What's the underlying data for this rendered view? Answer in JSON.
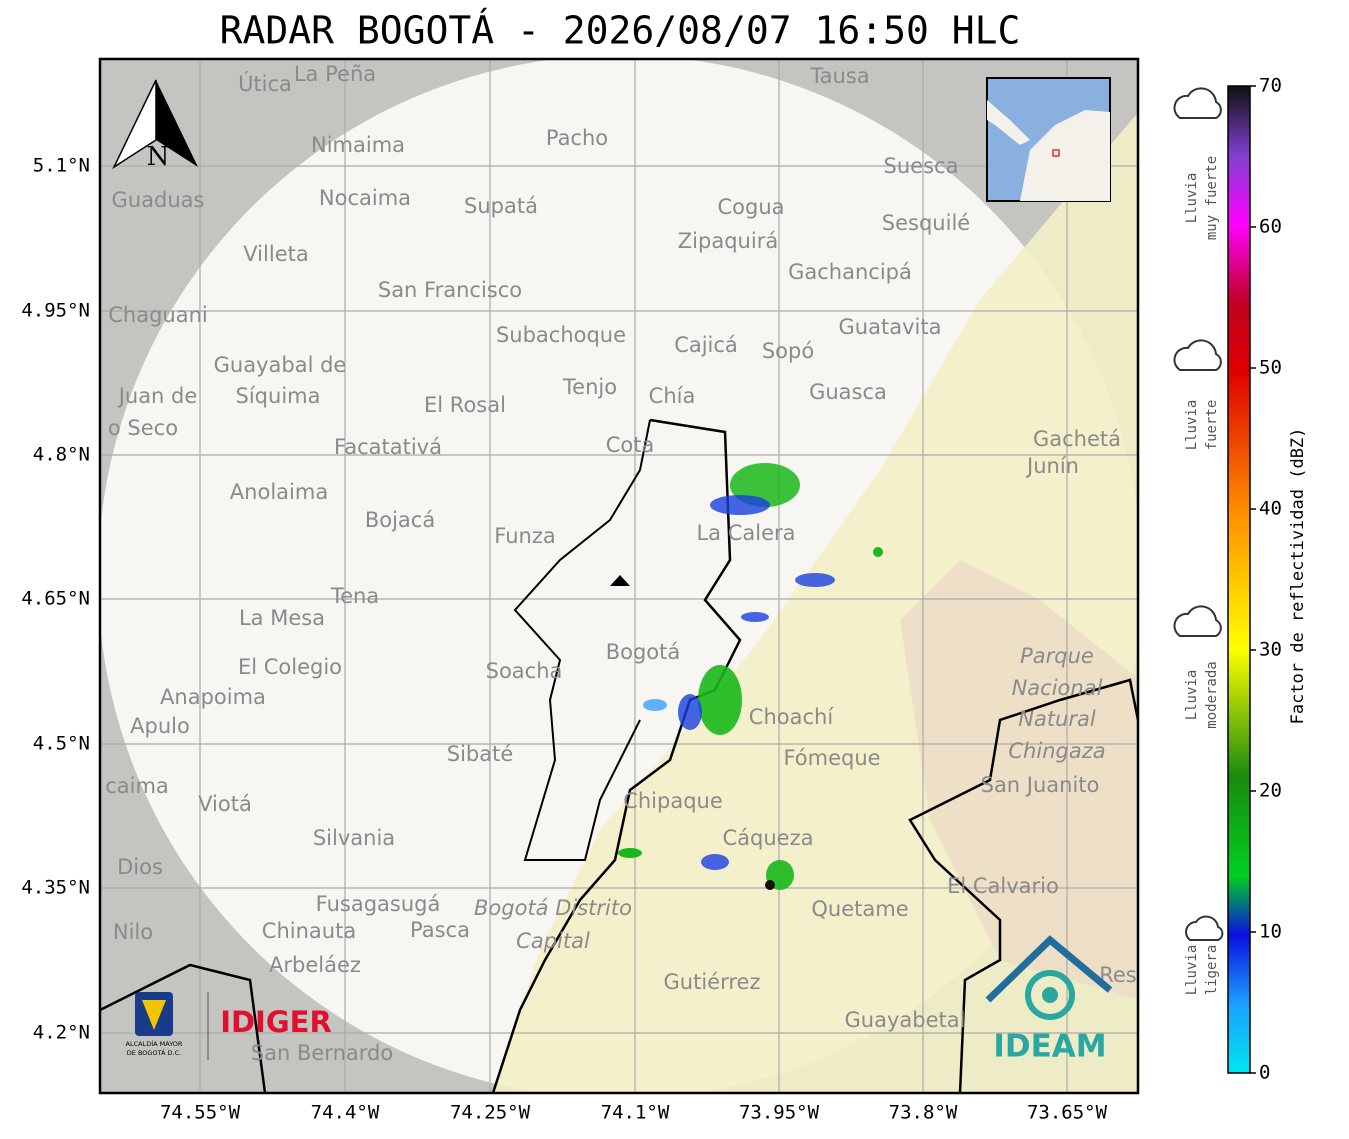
{
  "header": {
    "title": "RADAR BOGOTÁ - 2026/08/07 16:50 HLC"
  },
  "map": {
    "north": "N",
    "lat_labels": [
      "5.1°N",
      "4.95°N",
      "4.8°N",
      "4.65°N",
      "4.5°N",
      "4.35°N",
      "4.2°N"
    ],
    "lon_labels": [
      "74.55°W",
      "74.4°W",
      "74.25°W",
      "74.1°W",
      "73.95°W",
      "73.8°W",
      "73.65°W"
    ],
    "places": [
      "Útica",
      "La Peña",
      "Tausa",
      "Pacho",
      "Nimaima",
      "Guaduas",
      "Nocaima",
      "Supatá",
      "Cogua",
      "Suesca",
      "Sesquilé",
      "Villeta",
      "Zipaquirá",
      "Gachancipá",
      "San Francisco",
      "Chaguani",
      "Guatavita",
      "Subachoque",
      "Cajicá",
      "Sopó",
      "Guayabal de",
      "Síquima",
      "Juan de",
      "Tenjo",
      "Chía",
      "Guasca",
      "El Rosal",
      "o Seco",
      "Cota",
      "Facatativá",
      "Gachetá",
      "Junín",
      "Anolaima",
      "Bojacá",
      "Funza",
      "La Calera",
      "Tena",
      "La Mesa",
      "Parque",
      "Bogotá",
      "El Colegio",
      "Soacha",
      "Nacional",
      "Anapoima",
      "Apulo",
      "Choachí",
      "Natural",
      "Chingaza",
      "Sibaté",
      "Fómeque",
      "San Juanito",
      "caima",
      "Viotá",
      "Chipaque",
      "Silvania",
      "Cáqueza",
      "Dios",
      "El Calvario",
      "Fusagasugá",
      "Bogotá Distrito",
      "Quetame",
      "Nilo",
      "Chinauta",
      "Pasca",
      "Capital",
      "Arbeláez",
      "Gutiérrez",
      "Res",
      "Guayabetal",
      "San Bernardo"
    ]
  },
  "colorbar": {
    "label": "Factor de reflectividad (dBZ)",
    "lim": [
      0,
      70
    ],
    "ticks": [
      0,
      10,
      20,
      30,
      40,
      50,
      60,
      70
    ]
  },
  "rain_classes": [
    [
      "Lluvia",
      "muy fuerte"
    ],
    [
      "Lluvia",
      "fuerte"
    ],
    [
      "Lluvia",
      "moderada"
    ],
    [
      "Lluvia",
      "ligera"
    ]
  ],
  "logos": {
    "alcaldia": [
      "ALCALDÍA MAYOR",
      "DE BOGOTÁ D.C."
    ],
    "idiger": "IDIGER",
    "ideam": "IDEAM"
  }
}
